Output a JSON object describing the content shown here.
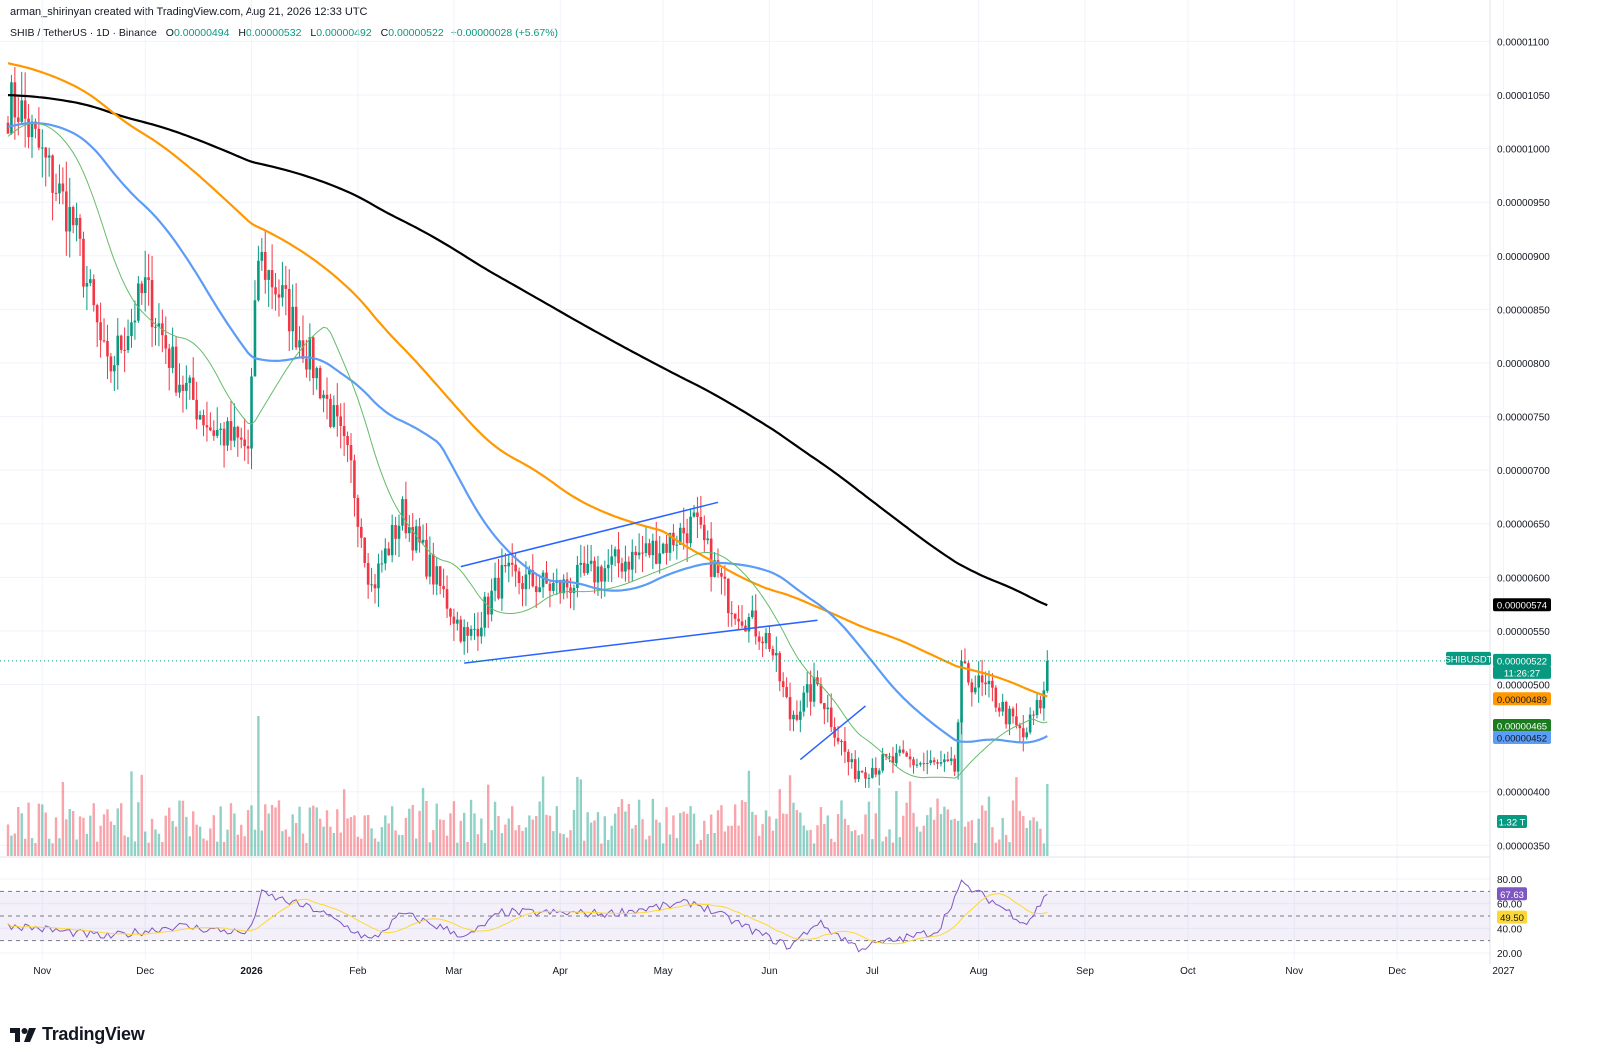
{
  "header": {
    "created": "arman_shirinyan created with TradingView.com, Aug 21, 2026 12:33 UTC",
    "symbol": "SHIB / TetherUS · 1D · Binance",
    "ohlc": [
      {
        "label": "O",
        "value": "0.00000494"
      },
      {
        "label": "H",
        "value": "0.00000532"
      },
      {
        "label": "L",
        "value": "0.00000492"
      },
      {
        "label": "C",
        "value": "0.00000522"
      }
    ],
    "change": "+0.00000028 (+5.67%)"
  },
  "colors": {
    "up": "#089981",
    "down": "#f23645",
    "ma200": "#000000",
    "ma100": "#ff9800",
    "ma50": "#5b9cf6",
    "ma20": "#66bb6a",
    "trendline": "#2962ff",
    "rsi": "#7e57c2",
    "rsi_ma": "#fdd835",
    "rsi_band": "#7e57c2"
  },
  "footer": {
    "brand": "TradingView",
    "logo_icon": "tradingview-logo-icon"
  },
  "chart_data": [
    {
      "type": "candlestick",
      "title": "SHIB / TetherUS · 1D · Binance",
      "x_ticks": [
        "Nov",
        "Dec",
        "2026",
        "Feb",
        "Mar",
        "Apr",
        "May",
        "Jun",
        "Jul",
        "Aug",
        "Sep",
        "Oct",
        "Nov",
        "Dec",
        "2027"
      ],
      "y_ticks": [
        "0.00001100",
        "0.00001050",
        "0.00001000",
        "0.00000950",
        "0.00000900",
        "0.00000850",
        "0.00000800",
        "0.00000750",
        "0.00000700",
        "0.00000650",
        "0.00000600",
        "0.00000550",
        "0.00000500",
        "0.00000400",
        "0.00000350"
      ],
      "ylim": [
        3.4e-06,
        1.12e-05
      ],
      "price_anchors": [
        {
          "date": "2025-10-25",
          "close": 1.04e-05
        },
        {
          "date": "2025-11-10",
          "close": 9.3e-06
        },
        {
          "date": "2025-11-20",
          "close": 7.9e-06
        },
        {
          "date": "2025-12-01",
          "close": 8.7e-06
        },
        {
          "date": "2025-12-10",
          "close": 7.9e-06
        },
        {
          "date": "2025-12-20",
          "close": 7.4e-06
        },
        {
          "date": "2025-12-31",
          "close": 7.2e-06
        },
        {
          "date": "2026-01-03",
          "close": 9e-06
        },
        {
          "date": "2026-01-10",
          "close": 8.6e-06
        },
        {
          "date": "2026-01-20",
          "close": 7.9e-06
        },
        {
          "date": "2026-01-30",
          "close": 7e-06
        },
        {
          "date": "2026-02-05",
          "close": 5.9e-06
        },
        {
          "date": "2026-02-14",
          "close": 6.6e-06
        },
        {
          "date": "2026-02-25",
          "close": 5.9e-06
        },
        {
          "date": "2026-03-05",
          "close": 5.4e-06
        },
        {
          "date": "2026-03-15",
          "close": 6e-06
        },
        {
          "date": "2026-04-01",
          "close": 5.9e-06
        },
        {
          "date": "2026-04-15",
          "close": 6.1e-06
        },
        {
          "date": "2026-05-01",
          "close": 6.3e-06
        },
        {
          "date": "2026-05-10",
          "close": 6.5e-06
        },
        {
          "date": "2026-05-20",
          "close": 5.8e-06
        },
        {
          "date": "2026-06-01",
          "close": 5.4e-06
        },
        {
          "date": "2026-06-07",
          "close": 4.7e-06
        },
        {
          "date": "2026-06-15",
          "close": 5e-06
        },
        {
          "date": "2026-06-25",
          "close": 4.2e-06
        },
        {
          "date": "2026-07-10",
          "close": 4.3e-06
        },
        {
          "date": "2026-07-25",
          "close": 4.2e-06
        },
        {
          "date": "2026-07-27",
          "close": 5.1e-06
        },
        {
          "date": "2026-08-05",
          "close": 4.9e-06
        },
        {
          "date": "2026-08-14",
          "close": 4.5e-06
        },
        {
          "date": "2026-08-20",
          "close": 4.9e-06
        },
        {
          "date": "2026-08-21",
          "close": 5.22e-06
        }
      ],
      "moving_averages": [
        {
          "name": "MA200",
          "color_key": "ma200",
          "last": 5.74e-06,
          "label": "0.00000574"
        },
        {
          "name": "MA100",
          "color_key": "ma100",
          "last": 4.89e-06,
          "label": "0.00000489"
        },
        {
          "name": "MA50",
          "color_key": "ma50",
          "last": 4.52e-06,
          "label": "0.00000452"
        },
        {
          "name": "MA20",
          "color_key": "ma20",
          "last": 4.65e-06,
          "label": "0.00000465"
        }
      ],
      "last_price": {
        "symbol": "SHIBUSDT",
        "value": 5.22e-06,
        "label": "0.00000522",
        "countdown": "11:26:27"
      },
      "volume_label": "1.32 T",
      "trendlines": [
        {
          "from": [
            "2026-03-03",
            6.1e-06
          ],
          "to": [
            "2026-05-17",
            6.7e-06
          ]
        },
        {
          "from": [
            "2026-03-04",
            5.2e-06
          ],
          "to": [
            "2026-06-15",
            5.6e-06
          ]
        },
        {
          "from": [
            "2026-06-10",
            4.3e-06
          ],
          "to": [
            "2026-06-29",
            4.8e-06
          ]
        }
      ]
    },
    {
      "type": "line",
      "title": "RSI",
      "y_ticks": [
        "80.00",
        "60.00",
        "40.00",
        "20.00"
      ],
      "ylim": [
        15,
        85
      ],
      "band": [
        30,
        70
      ],
      "anchors": [
        {
          "date": "2025-10-25",
          "rsi": 42
        },
        {
          "date": "2025-11-20",
          "rsi": 33
        },
        {
          "date": "2025-12-10",
          "rsi": 42
        },
        {
          "date": "2025-12-31",
          "rsi": 36
        },
        {
          "date": "2026-01-04",
          "rsi": 68
        },
        {
          "date": "2026-01-20",
          "rsi": 55
        },
        {
          "date": "2026-02-05",
          "rsi": 30
        },
        {
          "date": "2026-02-14",
          "rsi": 52
        },
        {
          "date": "2026-03-05",
          "rsi": 33
        },
        {
          "date": "2026-03-15",
          "rsi": 53
        },
        {
          "date": "2026-04-15",
          "rsi": 52
        },
        {
          "date": "2026-05-10",
          "rsi": 61
        },
        {
          "date": "2026-06-01",
          "rsi": 32
        },
        {
          "date": "2026-06-07",
          "rsi": 25
        },
        {
          "date": "2026-06-15",
          "rsi": 45
        },
        {
          "date": "2026-06-27",
          "rsi": 24
        },
        {
          "date": "2026-07-20",
          "rsi": 38
        },
        {
          "date": "2026-07-27",
          "rsi": 76
        },
        {
          "date": "2026-08-05",
          "rsi": 62
        },
        {
          "date": "2026-08-15",
          "rsi": 44
        },
        {
          "date": "2026-08-21",
          "rsi": 67.63
        }
      ],
      "rsi_last": {
        "value": 67.63,
        "label": "67.63"
      },
      "rsi_ma_last": {
        "value": 49.5,
        "label": "49.50"
      }
    }
  ]
}
